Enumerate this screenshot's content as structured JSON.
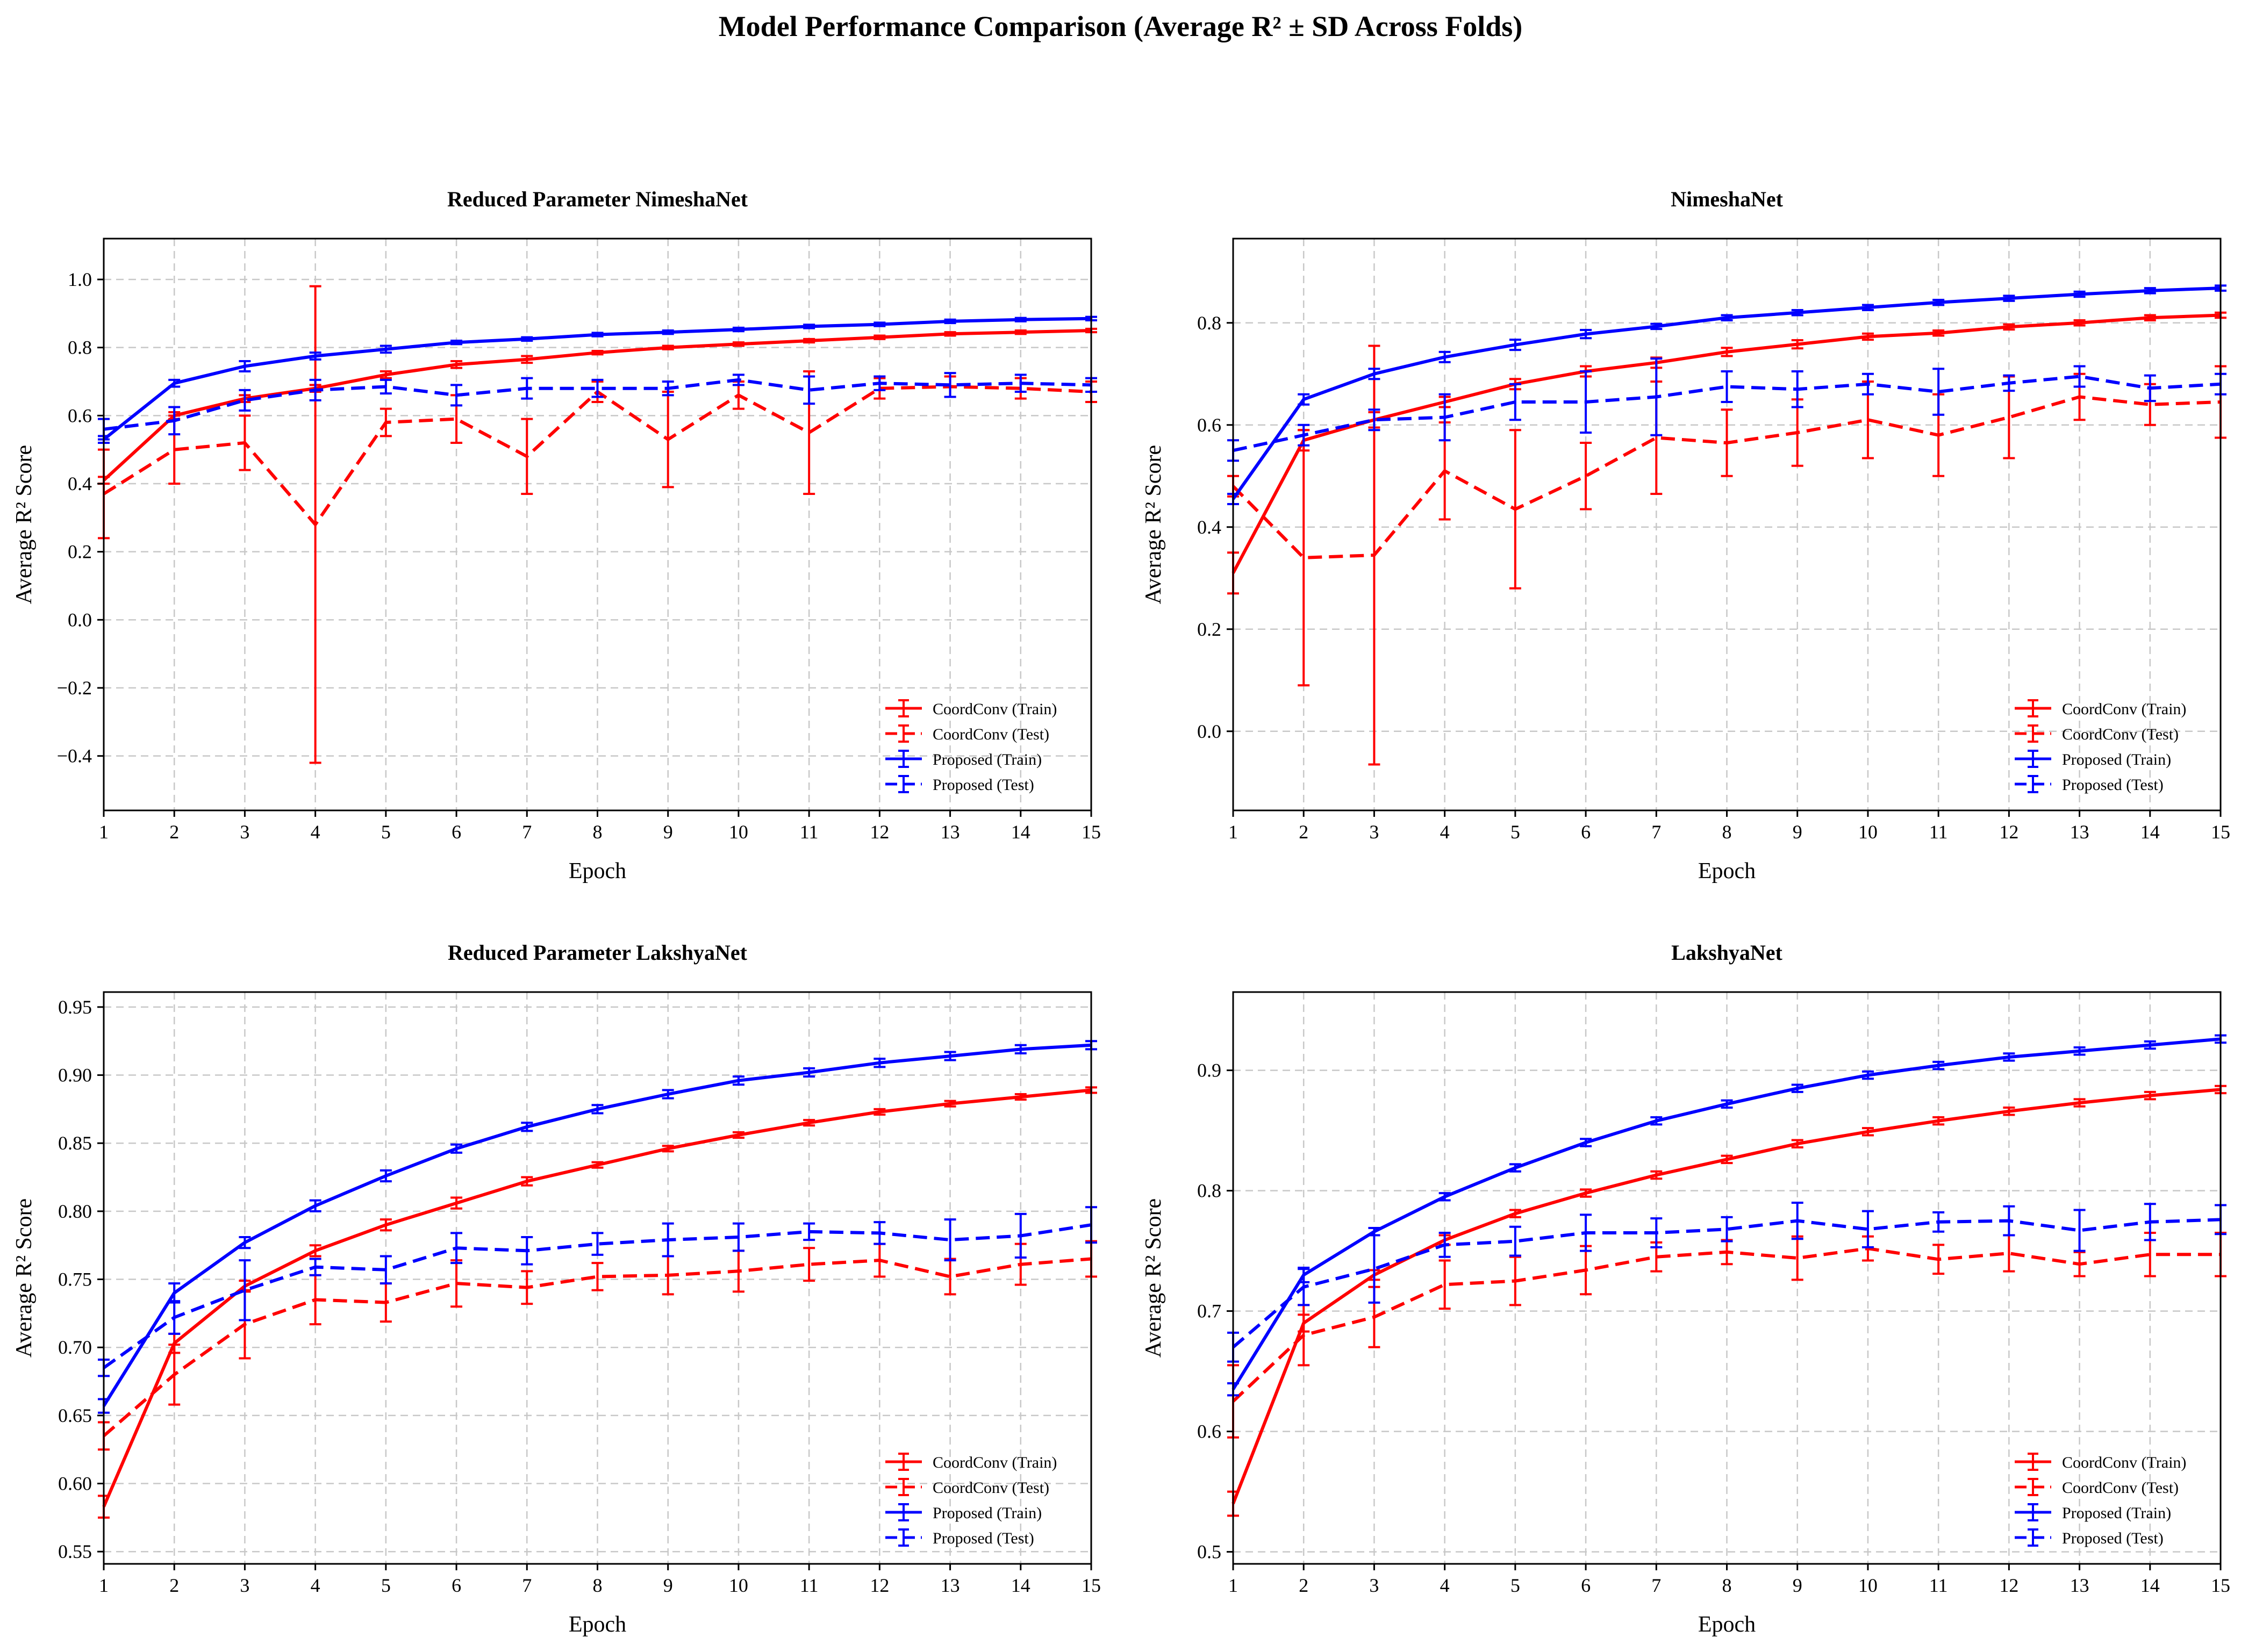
{
  "figure": {
    "suptitle": "Model Performance Comparison (Average R² ± SD Across Folds)",
    "colors": {
      "coordconv": "#ff0000",
      "proposed": "#0000ff",
      "grid": "#c8c8c8"
    },
    "legend_position": "lower-right"
  },
  "chart_data": [
    {
      "type": "line",
      "title": "Reduced Parameter NimeshaNet",
      "xlabel": "Epoch",
      "ylabel": "Average R² Score",
      "xlim": [
        1,
        15
      ],
      "ylim": [
        -0.56,
        1.12
      ],
      "xticks": [
        1,
        2,
        3,
        4,
        5,
        6,
        7,
        8,
        9,
        10,
        11,
        12,
        13,
        14,
        15
      ],
      "yticks": [
        -0.4,
        -0.2,
        0.0,
        0.2,
        0.4,
        0.6,
        0.8,
        1.0
      ],
      "ytick_labels": [
        "−0.4",
        "−0.2",
        "0.0",
        "0.2",
        "0.4",
        "0.6",
        "0.8",
        "1.0"
      ],
      "grid": true,
      "x": [
        1,
        2,
        3,
        4,
        5,
        6,
        7,
        8,
        9,
        10,
        11,
        12,
        13,
        14,
        15
      ],
      "series": [
        {
          "name": "CoordConv (Train)",
          "color": "#ff0000",
          "dash": false,
          "values": [
            0.41,
            0.6,
            0.65,
            0.68,
            0.72,
            0.75,
            0.765,
            0.785,
            0.8,
            0.81,
            0.82,
            0.83,
            0.84,
            0.845,
            0.85
          ],
          "errors": [
            0.01,
            0.01,
            0.01,
            0.01,
            0.01,
            0.01,
            0.01,
            0.005,
            0.005,
            0.005,
            0.005,
            0.005,
            0.005,
            0.005,
            0.005
          ]
        },
        {
          "name": "CoordConv (Test)",
          "color": "#ff0000",
          "dash": true,
          "values": [
            0.37,
            0.5,
            0.52,
            0.28,
            0.58,
            0.59,
            0.48,
            0.67,
            0.53,
            0.66,
            0.55,
            0.68,
            0.685,
            0.68,
            0.67
          ],
          "errors": [
            0.13,
            0.1,
            0.08,
            0.7,
            0.04,
            0.07,
            0.11,
            0.03,
            0.14,
            0.04,
            0.18,
            0.03,
            0.03,
            0.03,
            0.03
          ]
        },
        {
          "name": "Proposed (Train)",
          "color": "#0000ff",
          "dash": false,
          "values": [
            0.53,
            0.695,
            0.745,
            0.775,
            0.795,
            0.815,
            0.825,
            0.838,
            0.845,
            0.853,
            0.862,
            0.868,
            0.877,
            0.882,
            0.885
          ],
          "errors": [
            0.01,
            0.01,
            0.015,
            0.01,
            0.01,
            0.005,
            0.005,
            0.005,
            0.005,
            0.005,
            0.005,
            0.005,
            0.005,
            0.005,
            0.005
          ]
        },
        {
          "name": "Proposed (Test)",
          "color": "#0000ff",
          "dash": true,
          "values": [
            0.56,
            0.585,
            0.645,
            0.675,
            0.685,
            0.66,
            0.68,
            0.68,
            0.68,
            0.705,
            0.675,
            0.695,
            0.69,
            0.695,
            0.69
          ],
          "errors": [
            0.03,
            0.04,
            0.03,
            0.03,
            0.02,
            0.03,
            0.03,
            0.025,
            0.02,
            0.015,
            0.04,
            0.02,
            0.035,
            0.025,
            0.02
          ]
        }
      ],
      "legend": [
        "CoordConv (Train)",
        "CoordConv (Test)",
        "Proposed (Train)",
        "Proposed (Test)"
      ]
    },
    {
      "type": "line",
      "title": "NimeshaNet",
      "xlabel": "Epoch",
      "ylabel": "Average R² Score",
      "xlim": [
        1,
        15
      ],
      "ylim": [
        -0.155,
        0.965
      ],
      "xticks": [
        1,
        2,
        3,
        4,
        5,
        6,
        7,
        8,
        9,
        10,
        11,
        12,
        13,
        14,
        15
      ],
      "yticks": [
        0.0,
        0.2,
        0.4,
        0.6,
        0.8
      ],
      "ytick_labels": [
        "0.0",
        "0.2",
        "0.4",
        "0.6",
        "0.8"
      ],
      "grid": true,
      "x": [
        1,
        2,
        3,
        4,
        5,
        6,
        7,
        8,
        9,
        10,
        11,
        12,
        13,
        14,
        15
      ],
      "series": [
        {
          "name": "CoordConv (Train)",
          "color": "#ff0000",
          "dash": false,
          "values": [
            0.31,
            0.57,
            0.61,
            0.645,
            0.68,
            0.705,
            0.722,
            0.743,
            0.758,
            0.773,
            0.78,
            0.792,
            0.8,
            0.81,
            0.815
          ],
          "errors": [
            0.04,
            0.02,
            0.015,
            0.01,
            0.01,
            0.01,
            0.01,
            0.008,
            0.008,
            0.006,
            0.005,
            0.005,
            0.005,
            0.005,
            0.005
          ]
        },
        {
          "name": "CoordConv (Test)",
          "color": "#ff0000",
          "dash": true,
          "values": [
            0.48,
            0.34,
            0.345,
            0.51,
            0.435,
            0.5,
            0.575,
            0.565,
            0.585,
            0.61,
            0.58,
            0.615,
            0.655,
            0.64,
            0.645
          ],
          "errors": [
            0.02,
            0.25,
            0.41,
            0.095,
            0.155,
            0.065,
            0.11,
            0.065,
            0.065,
            0.075,
            0.08,
            0.08,
            0.045,
            0.04,
            0.07
          ]
        },
        {
          "name": "Proposed (Train)",
          "color": "#0000ff",
          "dash": false,
          "values": [
            0.455,
            0.65,
            0.7,
            0.733,
            0.757,
            0.778,
            0.793,
            0.81,
            0.82,
            0.83,
            0.84,
            0.848,
            0.856,
            0.863,
            0.868
          ],
          "errors": [
            0.01,
            0.01,
            0.01,
            0.01,
            0.01,
            0.008,
            0.005,
            0.005,
            0.005,
            0.005,
            0.005,
            0.005,
            0.005,
            0.005,
            0.005
          ]
        },
        {
          "name": "Proposed (Test)",
          "color": "#0000ff",
          "dash": true,
          "values": [
            0.55,
            0.58,
            0.61,
            0.615,
            0.645,
            0.645,
            0.655,
            0.675,
            0.67,
            0.68,
            0.665,
            0.682,
            0.695,
            0.672,
            0.68
          ],
          "errors": [
            0.02,
            0.02,
            0.02,
            0.045,
            0.035,
            0.06,
            0.075,
            0.03,
            0.035,
            0.02,
            0.045,
            0.015,
            0.02,
            0.025,
            0.02
          ]
        }
      ],
      "legend": [
        "CoordConv (Train)",
        "CoordConv (Test)",
        "Proposed (Train)",
        "Proposed (Test)"
      ]
    },
    {
      "type": "line",
      "title": "Reduced Parameter LakshyaNet",
      "xlabel": "Epoch",
      "ylabel": "Average R² Score",
      "xlim": [
        1,
        15
      ],
      "ylim": [
        0.541,
        0.961
      ],
      "xticks": [
        1,
        2,
        3,
        4,
        5,
        6,
        7,
        8,
        9,
        10,
        11,
        12,
        13,
        14,
        15
      ],
      "yticks": [
        0.55,
        0.6,
        0.65,
        0.7,
        0.75,
        0.8,
        0.85,
        0.9,
        0.95
      ],
      "ytick_labels": [
        "0.55",
        "0.60",
        "0.65",
        "0.70",
        "0.75",
        "0.80",
        "0.85",
        "0.90",
        "0.95"
      ],
      "grid": true,
      "x": [
        1,
        2,
        3,
        4,
        5,
        6,
        7,
        8,
        9,
        10,
        11,
        12,
        13,
        14,
        15
      ],
      "series": [
        {
          "name": "CoordConv (Train)",
          "color": "#ff0000",
          "dash": false,
          "values": [
            0.583,
            0.703,
            0.745,
            0.771,
            0.79,
            0.806,
            0.822,
            0.834,
            0.846,
            0.856,
            0.865,
            0.873,
            0.879,
            0.884,
            0.889
          ],
          "errors": [
            0.008,
            0.007,
            0.004,
            0.004,
            0.004,
            0.004,
            0.003,
            0.002,
            0.002,
            0.002,
            0.002,
            0.002,
            0.002,
            0.002,
            0.002
          ]
        },
        {
          "name": "CoordConv (Test)",
          "color": "#ff0000",
          "dash": true,
          "values": [
            0.635,
            0.68,
            0.717,
            0.735,
            0.733,
            0.747,
            0.744,
            0.752,
            0.753,
            0.756,
            0.761,
            0.764,
            0.752,
            0.761,
            0.765
          ],
          "errors": [
            0.01,
            0.022,
            0.025,
            0.018,
            0.014,
            0.017,
            0.012,
            0.01,
            0.014,
            0.015,
            0.012,
            0.012,
            0.013,
            0.015,
            0.013
          ]
        },
        {
          "name": "Proposed (Train)",
          "color": "#0000ff",
          "dash": false,
          "values": [
            0.657,
            0.74,
            0.777,
            0.804,
            0.826,
            0.846,
            0.862,
            0.875,
            0.886,
            0.896,
            0.902,
            0.909,
            0.914,
            0.919,
            0.922
          ],
          "errors": [
            0.005,
            0.007,
            0.004,
            0.004,
            0.004,
            0.003,
            0.003,
            0.003,
            0.003,
            0.003,
            0.003,
            0.003,
            0.003,
            0.003,
            0.003
          ]
        },
        {
          "name": "Proposed (Test)",
          "color": "#0000ff",
          "dash": true,
          "values": [
            0.685,
            0.722,
            0.742,
            0.759,
            0.757,
            0.773,
            0.771,
            0.776,
            0.779,
            0.781,
            0.785,
            0.784,
            0.779,
            0.782,
            0.79
          ],
          "errors": [
            0.006,
            0.012,
            0.022,
            0.006,
            0.01,
            0.011,
            0.01,
            0.008,
            0.012,
            0.01,
            0.006,
            0.008,
            0.015,
            0.016,
            0.013
          ]
        }
      ],
      "legend": [
        "CoordConv (Train)",
        "CoordConv (Test)",
        "Proposed (Train)",
        "Proposed (Test)"
      ]
    },
    {
      "type": "line",
      "title": "LakshyaNet",
      "xlabel": "Epoch",
      "ylabel": "Average R² Score",
      "xlim": [
        1,
        15
      ],
      "ylim": [
        0.49,
        0.965
      ],
      "xticks": [
        1,
        2,
        3,
        4,
        5,
        6,
        7,
        8,
        9,
        10,
        11,
        12,
        13,
        14,
        15
      ],
      "yticks": [
        0.5,
        0.6,
        0.7,
        0.8,
        0.9
      ],
      "ytick_labels": [
        "0.5",
        "0.6",
        "0.7",
        "0.8",
        "0.9"
      ],
      "grid": true,
      "x": [
        1,
        2,
        3,
        4,
        5,
        6,
        7,
        8,
        9,
        10,
        11,
        12,
        13,
        14,
        15
      ],
      "series": [
        {
          "name": "CoordConv (Train)",
          "color": "#ff0000",
          "dash": false,
          "values": [
            0.54,
            0.69,
            0.73,
            0.759,
            0.781,
            0.798,
            0.813,
            0.826,
            0.839,
            0.849,
            0.858,
            0.866,
            0.873,
            0.879,
            0.884
          ],
          "errors": [
            0.01,
            0.007,
            0.004,
            0.004,
            0.003,
            0.003,
            0.003,
            0.003,
            0.003,
            0.003,
            0.003,
            0.003,
            0.003,
            0.003,
            0.003
          ]
        },
        {
          "name": "CoordConv (Test)",
          "color": "#ff0000",
          "dash": true,
          "values": [
            0.625,
            0.68,
            0.695,
            0.722,
            0.725,
            0.734,
            0.745,
            0.749,
            0.744,
            0.752,
            0.743,
            0.748,
            0.739,
            0.747,
            0.747
          ],
          "errors": [
            0.03,
            0.025,
            0.025,
            0.02,
            0.02,
            0.02,
            0.012,
            0.01,
            0.018,
            0.01,
            0.012,
            0.015,
            0.01,
            0.018,
            0.018
          ]
        },
        {
          "name": "Proposed (Train)",
          "color": "#0000ff",
          "dash": false,
          "values": [
            0.635,
            0.73,
            0.766,
            0.795,
            0.819,
            0.84,
            0.858,
            0.872,
            0.885,
            0.896,
            0.904,
            0.911,
            0.916,
            0.921,
            0.926
          ],
          "errors": [
            0.005,
            0.006,
            0.003,
            0.003,
            0.003,
            0.003,
            0.003,
            0.003,
            0.003,
            0.003,
            0.003,
            0.003,
            0.003,
            0.003,
            0.003
          ]
        },
        {
          "name": "Proposed (Test)",
          "color": "#0000ff",
          "dash": true,
          "values": [
            0.67,
            0.72,
            0.735,
            0.755,
            0.758,
            0.765,
            0.765,
            0.768,
            0.775,
            0.768,
            0.774,
            0.775,
            0.767,
            0.774,
            0.776
          ],
          "errors": [
            0.012,
            0.015,
            0.028,
            0.01,
            0.012,
            0.015,
            0.012,
            0.01,
            0.015,
            0.015,
            0.008,
            0.012,
            0.017,
            0.015,
            0.012
          ]
        }
      ],
      "legend": [
        "CoordConv (Train)",
        "CoordConv (Test)",
        "Proposed (Train)",
        "Proposed (Test)"
      ]
    }
  ]
}
